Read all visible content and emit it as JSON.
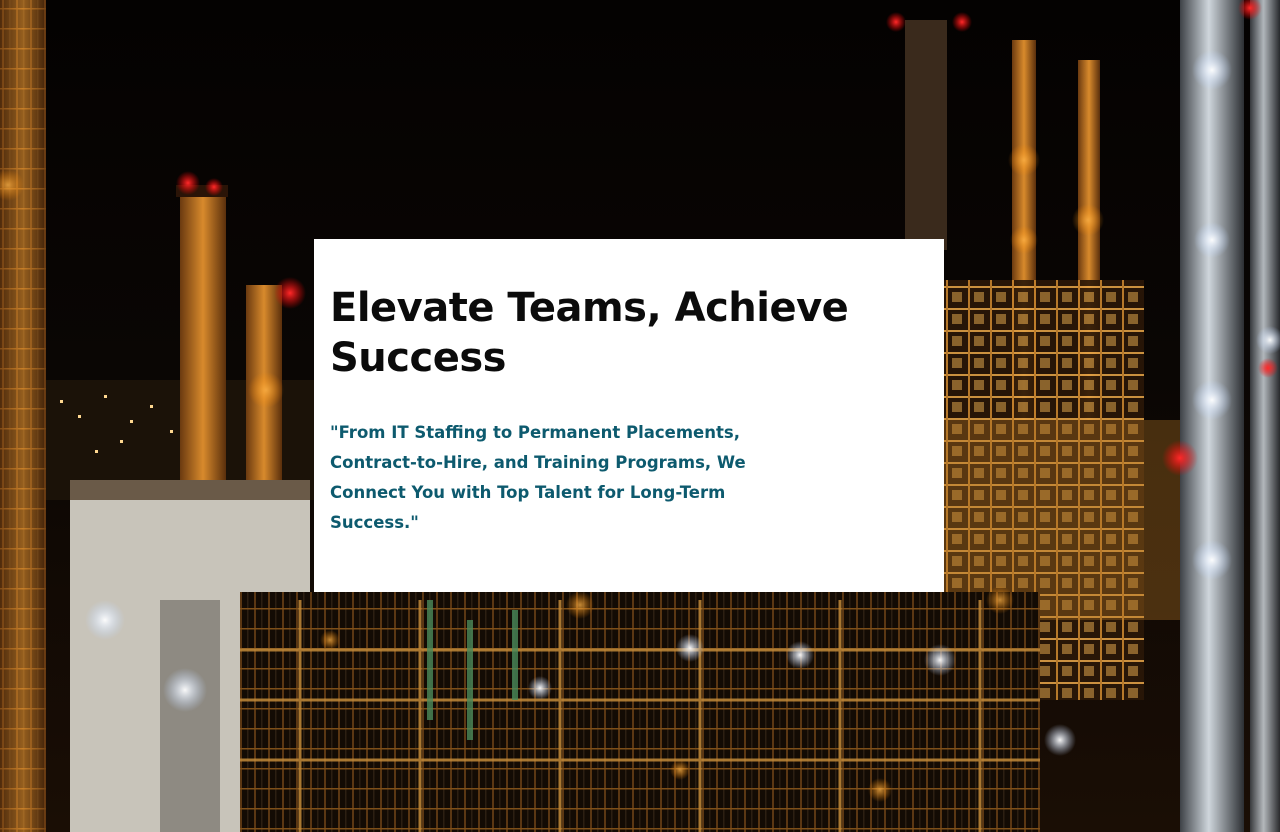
{
  "hero": {
    "background_icon": "industrial-refinery-night-photo",
    "title": "Elevate Teams, Achieve Success",
    "subtitle": "\"From IT Staffing to Permanent Placements, Contract-to-Hire, and Training Programs, We Connect You with Top Talent for Long-Term Success.\"",
    "colors": {
      "title": "#0b0b0b",
      "subtitle": "#0d5a6e",
      "card": "#ffffff"
    }
  }
}
